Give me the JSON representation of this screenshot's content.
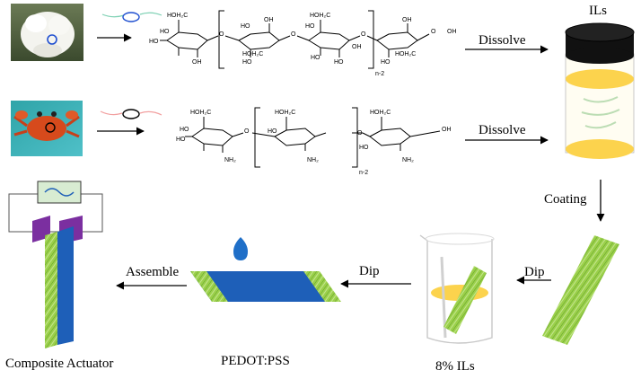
{
  "labels": {
    "dissolve_top": "Dissolve",
    "dissolve_mid": "Dissolve",
    "ils": "ILs",
    "coating": "Coating",
    "dip_right": "Dip",
    "dip_mid": "Dip",
    "assemble": "Assemble",
    "composite_actuator": "Composite Actuator",
    "pedot_pss": "PEDOT:PSS",
    "ils_8": "8% ILs"
  },
  "cellulose": {
    "groups": [
      "HOH₂C",
      "HO",
      "HO",
      "OH",
      "O",
      "HO",
      "HO",
      "OH",
      "HOH₂C",
      "O",
      "O",
      "HO",
      "HOH₂C",
      "HO",
      "HO",
      "OH",
      "O",
      "HO",
      "OH",
      "HOH₂C",
      "OH"
    ],
    "repeat": "n-2"
  },
  "chitin": {
    "groups": [
      "HOH₂C",
      "HO",
      "HO",
      "NH₂",
      "O",
      "HOH₂C",
      "HO",
      "NH₂",
      "O",
      "HOH₂C",
      "HO",
      "NH₂",
      "OH"
    ],
    "repeat": "n-2"
  },
  "colors": {
    "lid": "#111111",
    "ils_yellow": "#fcd34d",
    "fiber_green": "#8cc63f",
    "pedot_blue": "#1e5fb8",
    "electrode_purple": "#7b2fa0",
    "droplet_blue": "#1f6fc8"
  },
  "icons": [
    "mushroom-photo",
    "crab-photo",
    "signal-source-icon",
    "droplet-icon"
  ]
}
